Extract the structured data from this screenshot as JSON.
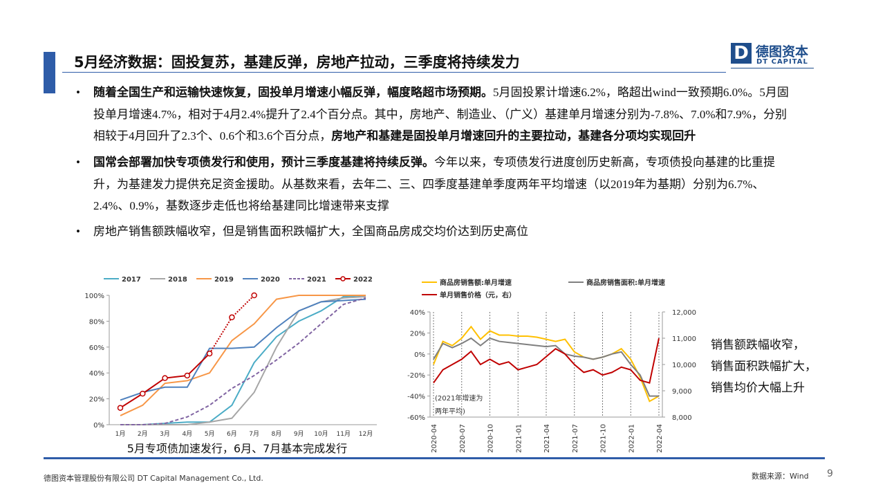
{
  "header": {
    "title": "5月经济数据：固投复苏，基建反弹，房地产拉动，三季度将持续发力",
    "logo_cn": "德图资本",
    "logo_en": "DT CAPITAL"
  },
  "bullets": [
    [
      {
        "text": "随着全国生产和运输快速恢复，固投单月增速小幅反弹，幅度略超市场预期。",
        "bold": true
      },
      {
        "text": "5月固投累计增速6.2%，略超出wind一致预期6.0%。5月固投单月增速4.7%，相对于4月2.4%提升了2.4个百分点。其中，房地产、制造业、（广义）基建单月增速分别为-7.8%、7.0%和7.9%，分别相较于4月回升了2.3个、0.6个和3.6个百分点，",
        "bold": false
      },
      {
        "text": "房地产和基建是固投单月增速回升的主要拉动，基建各分项均实现回升",
        "bold": true
      }
    ],
    [
      {
        "text": "国常会部署加快专项债发行和使用，预计三季度基建将持续反弹。",
        "bold": true
      },
      {
        "text": "今年以来，专项债发行进度创历史新高，专项债投向基建的比重提升，为基建发力提供充足资金援助。从基数来看，去年二、三、四季度基建单季度两年平均增速（以2019年为基期）分别为6.7%、2.4%、0.9%，基数逐步走低也将给基建同比增速带来支撑",
        "bold": false
      }
    ],
    [
      {
        "text": "房地产销售额跌幅收窄，但是销售面积跌幅扩大，全国商品房成交均价达到历史高位",
        "bold": false
      }
    ]
  ],
  "chart_data": [
    {
      "type": "line",
      "caption": "5月专项债加速发行，6月、7月基本完成发行",
      "categories": [
        "1月",
        "2月",
        "3月",
        "4月",
        "5月",
        "6月",
        "7月",
        "8月",
        "9月",
        "10月",
        "11月",
        "12月"
      ],
      "ylim": [
        0,
        100
      ],
      "yticks": [
        {
          "value": 0,
          "label": "0%"
        },
        {
          "value": 20,
          "label": "20%"
        },
        {
          "value": 40,
          "label": "40%"
        },
        {
          "value": 60,
          "label": "60%"
        },
        {
          "value": 80,
          "label": "80%"
        },
        {
          "value": 100,
          "label": "100%"
        }
      ],
      "series": [
        {
          "name": "2017",
          "color": "#4bacc6",
          "values": [
            0,
            0,
            1,
            2,
            2,
            15,
            48,
            68,
            80,
            88,
            99,
            100
          ]
        },
        {
          "name": "2018",
          "color": "#a6a6a6",
          "values": [
            0,
            0,
            0,
            0,
            2,
            5,
            25,
            60,
            88,
            95,
            98,
            99
          ]
        },
        {
          "name": "2019",
          "color": "#f79646",
          "values": [
            7,
            15,
            32,
            34,
            40,
            65,
            78,
            97,
            100,
            100,
            100,
            100
          ]
        },
        {
          "name": "2020",
          "color": "#4f81bd",
          "values": [
            19,
            25,
            29,
            29,
            59,
            59,
            60,
            75,
            88,
            95,
            96,
            97
          ]
        },
        {
          "name": "2021",
          "color": "#8064a2",
          "dash": true,
          "values": [
            0,
            0,
            1,
            6,
            15,
            28,
            38,
            50,
            63,
            78,
            93,
            98
          ]
        },
        {
          "name": "2022",
          "color": "#c00000",
          "markers": true,
          "dotted_after": 4,
          "values": [
            13,
            24,
            36,
            38,
            55,
            83,
            100,
            null,
            null,
            null,
            null,
            null
          ]
        }
      ]
    },
    {
      "type": "line",
      "categories": [
        "2020-04",
        null,
        null,
        "2020-07",
        null,
        null,
        "2020-10",
        null,
        null,
        "2021-01",
        null,
        null,
        "2021-04",
        null,
        null,
        "2021-07",
        null,
        null,
        "2021-10",
        null,
        null,
        "2022-01",
        null,
        null,
        "2022-04"
      ],
      "ylim": [
        -60,
        40
      ],
      "yticks": [
        {
          "value": -60,
          "label": "-60%"
        },
        {
          "value": -40,
          "label": "-40%"
        },
        {
          "value": -20,
          "label": "-20%"
        },
        {
          "value": 0,
          "label": "0%"
        },
        {
          "value": 20,
          "label": "20%"
        },
        {
          "value": 40,
          "label": "40%"
        }
      ],
      "y2lim": [
        8000,
        12000
      ],
      "y2ticks": [
        {
          "value": 8000,
          "label": "8,000"
        },
        {
          "value": 9000,
          "label": "9,000"
        },
        {
          "value": 10000,
          "label": "10,000"
        },
        {
          "value": 11000,
          "label": "11,000"
        },
        {
          "value": 12000,
          "label": "12,000"
        }
      ],
      "annotation": [
        "(2021年增速为",
        "两年平均)"
      ],
      "side_notes": [
        "销售额跌幅收窄，",
        "销售面积跌幅扩大，",
        "销售均价大幅上升"
      ],
      "series": [
        {
          "name": "商品房销售额:单月增速",
          "color": "#ffc000",
          "values": [
            -10,
            12,
            8,
            15,
            26,
            14,
            22,
            18,
            18,
            17,
            17,
            16,
            14,
            12,
            14,
            2,
            -3,
            -5,
            -3,
            0,
            5,
            -5,
            -22,
            -45,
            -40
          ]
        },
        {
          "name": "商品房销售面积:单月增速",
          "color": "#7f7f7f",
          "values": [
            -5,
            10,
            6,
            10,
            15,
            8,
            15,
            12,
            11,
            10,
            9,
            8,
            7,
            8,
            0,
            -2,
            -3,
            -5,
            -3,
            0,
            2,
            -10,
            -20,
            -40,
            -40
          ]
        },
        {
          "name": "单月销售价格（元，右）",
          "color": "#c00000",
          "axis": "y2",
          "values": [
            9300,
            9800,
            10000,
            10200,
            10500,
            10000,
            10200,
            10000,
            10100,
            9800,
            9900,
            10000,
            10300,
            10600,
            10400,
            10000,
            9700,
            9800,
            9600,
            9700,
            9900,
            9800,
            9400,
            9300,
            11000
          ]
        }
      ]
    }
  ],
  "footer": {
    "company": "德图资本管理股份有限公司 DT Capital Management Co., Ltd.",
    "source": "数据来源：Wind",
    "page": "9"
  }
}
